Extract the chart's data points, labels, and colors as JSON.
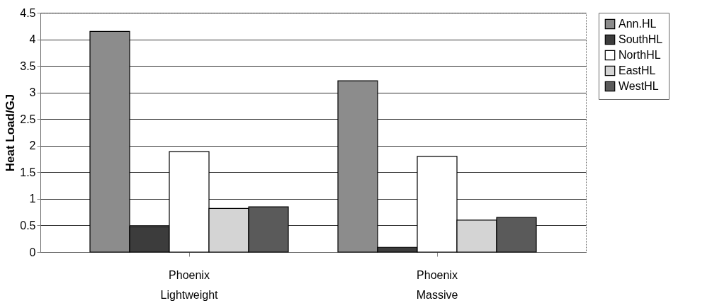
{
  "chart_data": {
    "type": "bar",
    "ylabel": "Heat Load/GJ",
    "categories": [
      "Phoenix Lightweight",
      "Phoenix Massive"
    ],
    "series": [
      {
        "name": "Ann.HL",
        "color": "#8c8c8c",
        "values": [
          4.15,
          3.22
        ]
      },
      {
        "name": "SouthHL",
        "color": "#3c3c3c",
        "values": [
          0.48,
          0.09
        ]
      },
      {
        "name": "NorthHL",
        "color": "#ffffff",
        "values": [
          1.89,
          1.8
        ]
      },
      {
        "name": "EastHL",
        "color": "#d4d4d4",
        "values": [
          0.82,
          0.6
        ]
      },
      {
        "name": "WestHL",
        "color": "#5a5a5a",
        "values": [
          0.85,
          0.65
        ]
      }
    ],
    "ylim": [
      0,
      4.5
    ],
    "yticks": [
      0,
      0.5,
      1,
      1.5,
      2,
      2.5,
      3,
      3.5,
      4,
      4.5
    ],
    "grid": "y",
    "legend": "right"
  }
}
